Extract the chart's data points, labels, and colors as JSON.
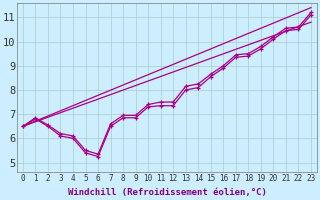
{
  "background_color": "#cceeff",
  "plot_bg_color": "#cceeff",
  "grid_color": "#aacccc",
  "line_color": "#aa0088",
  "xlim": [
    -0.5,
    23.5
  ],
  "ylim": [
    4.6,
    11.6
  ],
  "xticks": [
    0,
    1,
    2,
    3,
    4,
    5,
    6,
    7,
    8,
    9,
    10,
    11,
    12,
    13,
    14,
    15,
    16,
    17,
    18,
    19,
    20,
    21,
    22,
    23
  ],
  "yticks": [
    5,
    6,
    7,
    8,
    9,
    10,
    11
  ],
  "xlabel": "Windchill (Refroidissement éolien,°C)",
  "straight_lines": [
    {
      "x": [
        0,
        23
      ],
      "y": [
        6.5,
        10.8
      ]
    },
    {
      "x": [
        0,
        23
      ],
      "y": [
        6.5,
        11.4
      ]
    }
  ],
  "curved_lines": [
    {
      "x": [
        0,
        1,
        2,
        3,
        4,
        5,
        6,
        7,
        8,
        9,
        10,
        11,
        12,
        13,
        14,
        15,
        16,
        17,
        18,
        19,
        20,
        21,
        22,
        23
      ],
      "y": [
        6.5,
        6.8,
        6.5,
        6.1,
        6.0,
        5.4,
        5.25,
        6.5,
        6.85,
        6.85,
        7.3,
        7.35,
        7.35,
        8.0,
        8.1,
        8.55,
        8.9,
        9.35,
        9.4,
        9.7,
        10.1,
        10.45,
        10.5,
        11.1
      ]
    },
    {
      "x": [
        0,
        1,
        2,
        3,
        4,
        5,
        6,
        7,
        8,
        9,
        10,
        11,
        12,
        13,
        14,
        15,
        16,
        17,
        18,
        19,
        20,
        21,
        22,
        23
      ],
      "y": [
        6.5,
        6.85,
        6.55,
        6.2,
        6.1,
        5.5,
        5.35,
        6.6,
        6.95,
        6.95,
        7.4,
        7.5,
        7.5,
        8.15,
        8.25,
        8.65,
        9.0,
        9.45,
        9.5,
        9.8,
        10.2,
        10.55,
        10.6,
        11.2
      ]
    }
  ],
  "fontsize_xlabel": 6.5,
  "fontsize_yticks": 7.5,
  "fontsize_xticks": 5.5
}
